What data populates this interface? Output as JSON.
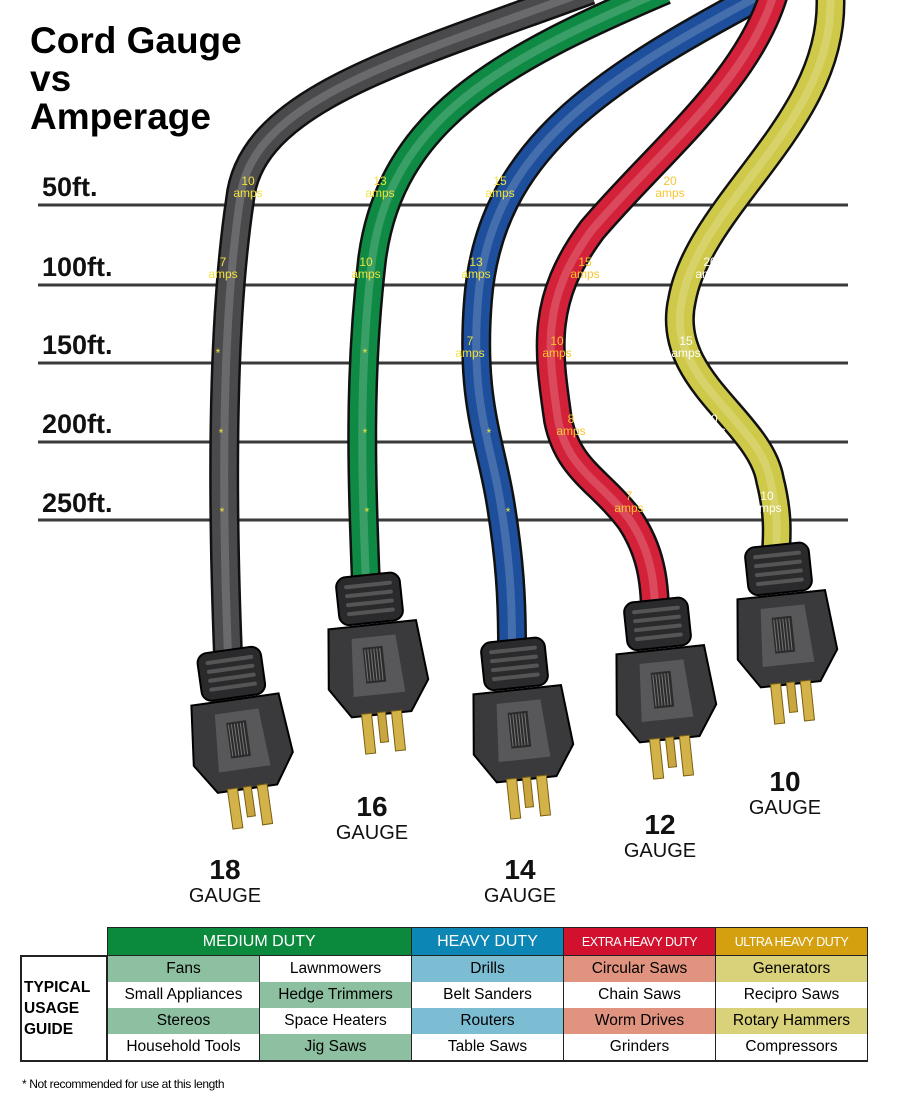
{
  "title": [
    "Cord Gauge",
    "vs",
    "Amperage"
  ],
  "lengths": [
    "50ft.",
    "100ft.",
    "150ft.",
    "200ft.",
    "250ft."
  ],
  "cords": [
    {
      "gauge": "18",
      "unit": "GAUGE",
      "color": "#4a4a4c",
      "text_color": "#f2e23a",
      "amps": [
        "10\namps",
        "7\namps",
        "*",
        "*",
        "*"
      ]
    },
    {
      "gauge": "16",
      "unit": "GAUGE",
      "color": "#0f8a45",
      "text_color": "#f2e23a",
      "amps": [
        "13\namps",
        "10\namps",
        "*",
        "*",
        "*"
      ]
    },
    {
      "gauge": "14",
      "unit": "GAUGE",
      "color": "#1d4f9c",
      "text_color": "#f2e23a",
      "amps": [
        "15\namps",
        "13\namps",
        "7\namps",
        "*",
        "*"
      ]
    },
    {
      "gauge": "12",
      "unit": "GAUGE",
      "color": "#d4213a",
      "text_color": "#f7c531",
      "amps": [
        "20\namps",
        "15\namps",
        "10\namps",
        "8\namps",
        "7\namps"
      ]
    },
    {
      "gauge": "10",
      "unit": "GAUGE",
      "color": "#cfc94a",
      "text_color": "#ffffff",
      "amps": [
        "20\namps",
        "20\namps",
        "15\namps",
        "10\namps",
        "10\namps"
      ]
    }
  ],
  "table": {
    "row_label": [
      "TYPICAL",
      "USAGE",
      "GUIDE"
    ],
    "headers": [
      {
        "label": "MEDIUM DUTY",
        "color": "#0b8a3e"
      },
      {
        "label": "HEAVY DUTY",
        "color": "#0b86b5"
      },
      {
        "label": "EXTRA HEAVY DUTY",
        "color": "#d2112e"
      },
      {
        "label": "ULTRA HEAVY DUTY",
        "color": "#d4a00f"
      }
    ],
    "rows": [
      [
        "Fans",
        "Lawnmowers",
        "Drills",
        "Circular Saws",
        "Generators"
      ],
      [
        "Small Appliances",
        "Hedge Trimmers",
        "Belt Sanders",
        "Chain Saws",
        "Recipro Saws"
      ],
      [
        "Stereos",
        "Space Heaters",
        "Routers",
        "Worm Drives",
        "Rotary Hammers"
      ],
      [
        "Household Tools",
        "Jig Saws",
        "Table Saws",
        "Grinders",
        "Compressors"
      ]
    ],
    "highlight_colors": [
      "#8dc0a0",
      "#8dc0a0",
      "#7cbdd3",
      "#e0937f",
      "#d9d27a"
    ]
  },
  "footnote": "* Not recommended for use at this length"
}
